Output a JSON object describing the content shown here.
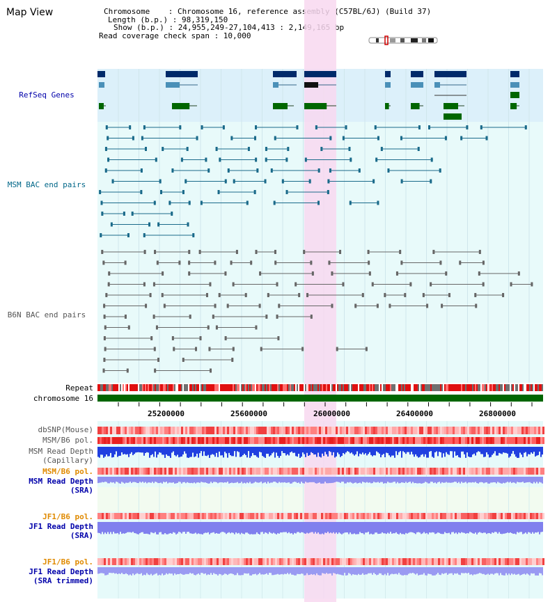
{
  "page_title": "Map View",
  "info": {
    "chromosome_line": "Chromosome    : Chromosome 16, reference assembly (C57BL/6J) (Build 37)",
    "length_line": "Length (b.p.) : 98,319,150",
    "show_line": "Show (b.p.) : 24,955,249-27,104,413 : 2,149,165 bp",
    "coverage_line": "Read coverage check span : 10,000"
  },
  "tracks": {
    "refseq": "RefSeq Genes",
    "msm_bac": "MSM BAC end pairs",
    "b6n_bac": "B6N BAC end pairs",
    "repeat": "Repeat",
    "chromosome": "chromosome 16",
    "dbsnp": "dbSNP(Mouse)",
    "msm_b6_pol": "MSM/B6 pol.",
    "msm_depth_cap": "MSM Read Depth",
    "msm_depth_cap_sub": "(Capillary)",
    "msm_b6_pol_sra": "MSM/B6 pol.",
    "msm_depth_sra": "MSM Read Depth",
    "msm_depth_sra_sub": "(SRA)",
    "jf1_b6_pol": "JF1/B6 pol.",
    "jf1_depth": "JF1 Read Depth",
    "jf1_depth_sub": "(SRA)",
    "jf1_b6_pol_trim": "JF1/B6 pol.",
    "jf1_depth_trim": "JF1 Read Depth",
    "jf1_depth_trim_sub": "(SRA trimmed)"
  },
  "axis_ticks": [
    "25200000",
    "25600000",
    "26000000",
    "26400000",
    "26800000"
  ],
  "colors": {
    "refseq_bg": "#dcf0fa",
    "bac_bg": "#e8fafa",
    "highlight": "#f8d8f0",
    "gene_dark": "#002a6a",
    "gene_green": "#006600",
    "chrom_bar": "#006600"
  }
}
